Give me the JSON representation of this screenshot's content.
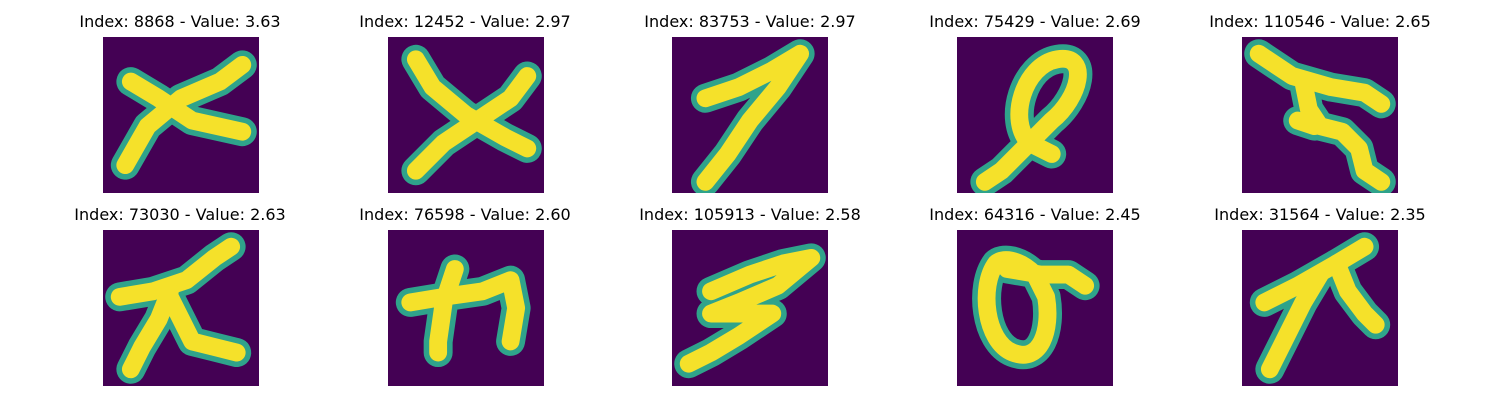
{
  "colors": {
    "background": "#440154",
    "stroke_core": "#fde725",
    "stroke_edge": "#21918c"
  },
  "panels": [
    {
      "title": "Index: 8868 - Value: 3.63",
      "glyph": "x-cross"
    },
    {
      "title": "Index: 12452 - Value: 2.97",
      "glyph": "x-cross"
    },
    {
      "title": "Index: 83753 - Value: 2.97",
      "glyph": "hooked-diagonal"
    },
    {
      "title": "Index: 75429 - Value: 2.69",
      "glyph": "loop-with-tail"
    },
    {
      "title": "Index: 110546 - Value: 2.65",
      "glyph": "te-shape"
    },
    {
      "title": "Index: 73030 - Value: 2.63",
      "glyph": "nine-like-shape"
    },
    {
      "title": "Index: 76598 - Value: 2.60",
      "glyph": "ka-shape"
    },
    {
      "title": "Index: 105913 - Value: 2.58",
      "glyph": "zigzag"
    },
    {
      "title": "Index: 64316 - Value: 2.45",
      "glyph": "o-with-bar"
    },
    {
      "title": "Index: 31564 - Value: 2.35",
      "glyph": "ya-shape"
    }
  ]
}
